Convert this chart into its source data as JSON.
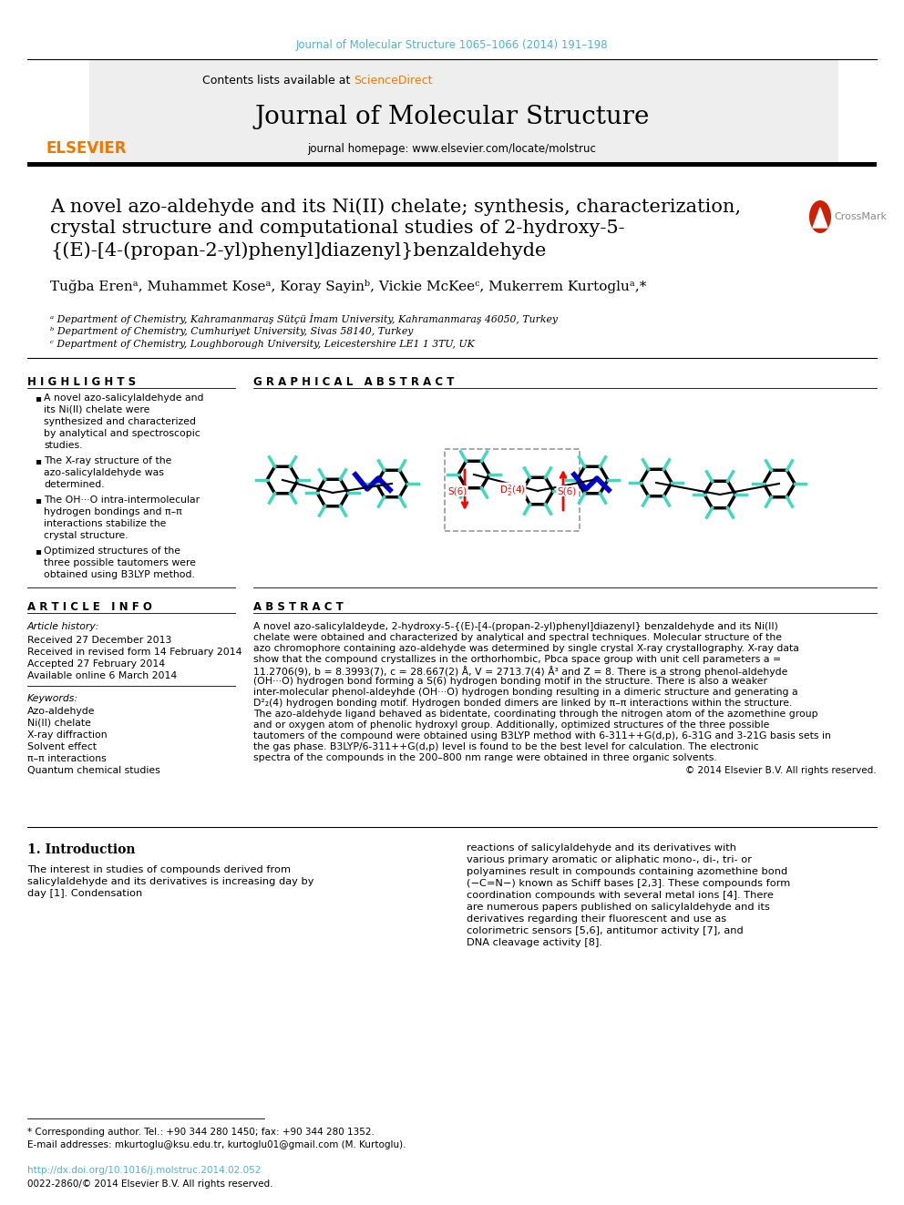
{
  "page_bg": "#ffffff",
  "journal_ref_color": "#4db3d4",
  "journal_ref": "Journal of Molecular Structure 1065–1066 (2014) 191–198",
  "sciencedirect_color": "#f07800",
  "journal_title": "Journal of Molecular Structure",
  "journal_homepage": "journal homepage: www.elsevier.com/locate/molstruc",
  "elsevier_color": "#f07800",
  "article_title_line1": "A novel azo-aldehyde and its Ni(II) chelate; synthesis, characterization,",
  "article_title_line2": "crystal structure and computational studies of 2-hydroxy-5-",
  "article_title_line3": "{(E)-[4-(propan-2-yl)phenyl]diazenyl}benzaldehyde",
  "authors": "Tuğba Erenᵃ, Muhammet Koseᵃ, Koray Sayinᵇ, Vickie McKeeᶜ, Mukerrem Kurtogluᵃ,*",
  "affil_a": "ᵃ Department of Chemistry, Kahramanmaraş Sütçü İmam University, Kahramanmaraş 46050, Turkey",
  "affil_b": "ᵇ Department of Chemistry, Cumhuriyet University, Sivas 58140, Turkey",
  "affil_c": "ᶜ Department of Chemistry, Loughborough University, Leicestershire LE1 1 3TU, UK",
  "highlights_title": "H I G H L I G H T S",
  "highlights": [
    "A novel azo-salicylaldehyde and its Ni(II) chelate were synthesized and characterized by analytical and spectroscopic studies.",
    "The X-ray structure of the azo-salicylaldehyde was determined.",
    "The OH···O intra-intermolecular hydrogen bondings and π–π interactions stabilize the crystal structure.",
    "Optimized structures of the three possible tautomers were obtained using B3LYP method."
  ],
  "graphical_abstract_title": "G R A P H I C A L   A B S T R A C T",
  "article_info_title": "A R T I C L E   I N F O",
  "article_history_title": "Article history:",
  "received": "Received 27 December 2013",
  "revised": "Received in revised form 14 February 2014",
  "accepted": "Accepted 27 February 2014",
  "available": "Available online 6 March 2014",
  "keywords_title": "Keywords:",
  "keywords": [
    "Azo-aldehyde",
    "Ni(II) chelate",
    "X-ray diffraction",
    "Solvent effect",
    "π–π interactions",
    "Quantum chemical studies"
  ],
  "abstract_title": "A B S T R A C T",
  "abstract_text": "A novel  azo-salicylaldeyde,  2-hydroxy-5-{(E)-[4-(propan-2-yl)phenyl]diazenyl}  benzaldehyde  and  its Ni(II) chelate were obtained and characterized by analytical and spectral techniques. Molecular structure of the azo chromophore containing azo-aldehyde was determined by single crystal X-ray crystallography. X-ray data show that the compound crystallizes in the orthorhombic, Pbca space group with unit cell parameters a = 11.2706(9), b = 8.3993(7), c = 28.667(2) Å, V = 2713.7(4) Å³ and Z = 8. There is a strong phenol-aldehyde (OH···O) hydrogen bond forming a S(6) hydrogen bonding motif in the structure. There is also a weaker inter-molecular phenol-aldeyhde (OH···O) hydrogen bonding resulting in a dimeric structure and generating a D²₂(4) hydrogen bonding motif. Hydrogen bonded dimers are linked by π–π interactions within the structure. The azo-aldehyde ligand behaved as bidentate, coordinating through the nitrogen atom of the azomethine group and or oxygen atom of phenolic hydroxyl group. Additionally, optimized structures of the three possible tautomers of the compound were obtained using B3LYP method with 6-311++G(d,p), 6-31G and 3-21G basis sets in the gas phase. B3LYP/6-311++G(d,p) level is found to be the best level for calculation. The electronic spectra of the compounds in the 200–800 nm range were obtained in three organic solvents.",
  "abstract_copyright": "© 2014 Elsevier B.V. All rights reserved.",
  "intro_title": "1. Introduction",
  "intro_text1": "    The interest in studies of compounds derived from salicylaldehyde and its derivatives is increasing day by day [1]. Condensation",
  "intro_text2": "reactions of salicylaldehyde and its derivatives with various primary aromatic or aliphatic mono-, di-, tri- or polyamines result in compounds containing azomethine bond (−C=N−) known as Schiff bases [2,3]. These compounds form coordination compounds with several metal ions [4]. There are numerous papers published on salicylaldehyde and its derivatives regarding their fluorescent and use as colorimetric sensors [5,6], antitumor activity [7], and DNA cleavage activity [8].",
  "footnote1": "* Corresponding author. Tel.: +90 344 280 1450; fax: +90 344 280 1352.",
  "footnote2": "E-mail addresses: mkurtoglu@ksu.edu.tr, kurtoglu01@gmail.com (M. Kurtoglu).",
  "doi_text": "http://dx.doi.org/10.1016/j.molstruc.2014.02.052",
  "issn_text": "0022-2860/© 2014 Elsevier B.V. All rights reserved.",
  "doi_color": "#4db3d4",
  "cyan_color": "#40d8c0",
  "blue_color": "#0000cc",
  "red_color": "#cc2200"
}
